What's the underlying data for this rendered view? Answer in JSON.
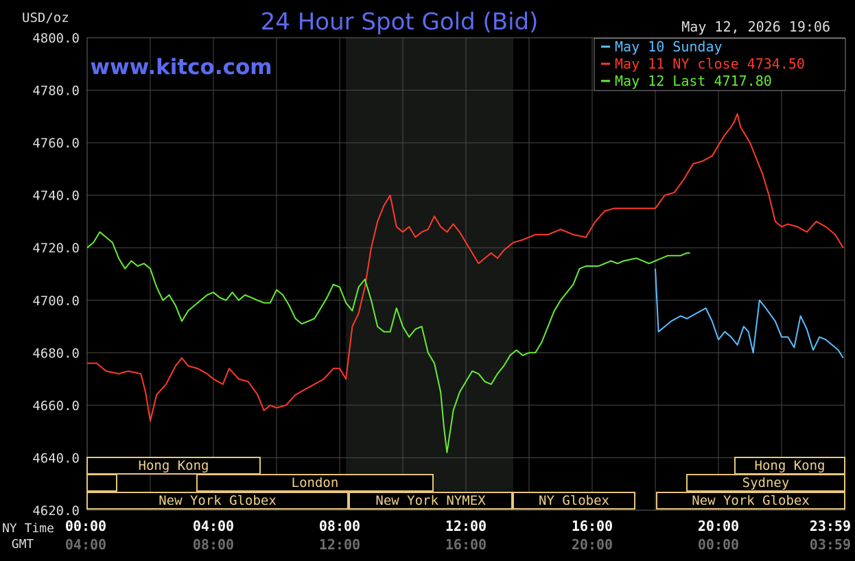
{
  "chart_data": {
    "type": "line",
    "title": "24 Hour Spot Gold (Bid)",
    "ylabel": "USD/oz",
    "watermark": "www.kitco.com",
    "timestamp": "May 12, 2026 19:06",
    "ylim": [
      4620,
      4800
    ],
    "yticks": [
      "4800.0",
      "4780.0",
      "4760.0",
      "4740.0",
      "4720.0",
      "4700.0",
      "4680.0",
      "4660.0",
      "4640.0",
      "4620.0"
    ],
    "x_axis": {
      "row_labels": [
        "NY Time",
        "GMT"
      ],
      "ny_time_ticks": [
        "00:00",
        "04:00",
        "08:00",
        "12:00",
        "16:00",
        "20:00",
        "23:59"
      ],
      "gmt_ticks": [
        "04:00",
        "08:00",
        "12:00",
        "16:00",
        "20:00",
        "00:00",
        "03:59"
      ],
      "xlim_hours": [
        0,
        24
      ]
    },
    "nymex_session_hours": [
      8.2,
      13.5
    ],
    "legend_position": "top-right",
    "series": [
      {
        "name": "May 10 Sunday",
        "color": "#5bbfff",
        "x": [
          18,
          18.05,
          18.1,
          18.3,
          18.5,
          18.8,
          19.0,
          19.3,
          19.6,
          19.8,
          20.0,
          20.2,
          20.4,
          20.6,
          20.8,
          20.95,
          21.1,
          21.3,
          21.5,
          21.8,
          22.0,
          22.2,
          22.4,
          22.6,
          22.8,
          23.0,
          23.2,
          23.4,
          23.6,
          23.8,
          23.95
        ],
        "values": [
          4712,
          4700,
          4688,
          4690,
          4692,
          4694,
          4693,
          4695,
          4697,
          4692,
          4685,
          4688,
          4686,
          4683,
          4690,
          4688,
          4680,
          4700,
          4697,
          4692,
          4686,
          4686,
          4682,
          4694,
          4689,
          4681,
          4686,
          4685,
          4683,
          4681,
          4678
        ]
      },
      {
        "name": "May 11 NY close 4734.50",
        "color": "#ff3a2a",
        "x": [
          0,
          0.3,
          0.6,
          1.0,
          1.3,
          1.7,
          1.85,
          2.0,
          2.2,
          2.5,
          2.8,
          3.0,
          3.2,
          3.5,
          3.8,
          4.0,
          4.3,
          4.5,
          4.8,
          5.1,
          5.4,
          5.6,
          5.8,
          6.0,
          6.3,
          6.6,
          6.9,
          7.2,
          7.5,
          7.8,
          8.0,
          8.2,
          8.4,
          8.6,
          8.8,
          9.0,
          9.2,
          9.4,
          9.6,
          9.8,
          10.0,
          10.2,
          10.4,
          10.6,
          10.8,
          11.0,
          11.2,
          11.4,
          11.6,
          11.8,
          12.0,
          12.2,
          12.4,
          12.6,
          12.8,
          13.0,
          13.2,
          13.5,
          13.8,
          14.2,
          14.6,
          15.0,
          15.4,
          15.8,
          16.1,
          16.4,
          16.7,
          17.0,
          17.5,
          18.0,
          18.3,
          18.6,
          18.9,
          19.2,
          19.5,
          19.8,
          20.0,
          20.2,
          20.4,
          20.5,
          20.6,
          20.7,
          20.8,
          21.0,
          21.2,
          21.4,
          21.6,
          21.8,
          22.0,
          22.2,
          22.5,
          22.8,
          23.1,
          23.4,
          23.7,
          23.95
        ],
        "values": [
          4676,
          4676,
          4673,
          4672,
          4673,
          4672,
          4665,
          4654,
          4664,
          4668,
          4675,
          4678,
          4675,
          4674,
          4672,
          4670,
          4668,
          4674,
          4670,
          4669,
          4664,
          4658,
          4660,
          4659,
          4660,
          4664,
          4666,
          4668,
          4670,
          4674,
          4674,
          4670,
          4690,
          4695,
          4705,
          4720,
          4730,
          4736,
          4740,
          4728,
          4726,
          4728,
          4724,
          4726,
          4727,
          4732,
          4728,
          4726,
          4729,
          4726,
          4722,
          4718,
          4714,
          4716,
          4718,
          4716,
          4719,
          4722,
          4723,
          4725,
          4725,
          4727,
          4725,
          4724,
          4730,
          4734,
          4735,
          4735,
          4735,
          4735,
          4740,
          4741,
          4746,
          4752,
          4753,
          4755,
          4759,
          4763,
          4766,
          4768,
          4771,
          4766,
          4764,
          4760,
          4754,
          4748,
          4740,
          4730,
          4728,
          4729,
          4728,
          4726,
          4730,
          4728,
          4725,
          4720
        ]
      },
      {
        "name": "May 12 Last 4717.80",
        "color": "#66ee33",
        "x": [
          0,
          0.2,
          0.4,
          0.6,
          0.8,
          1.0,
          1.2,
          1.4,
          1.6,
          1.8,
          2.0,
          2.2,
          2.4,
          2.6,
          2.8,
          3.0,
          3.2,
          3.4,
          3.6,
          3.8,
          4.0,
          4.2,
          4.4,
          4.6,
          4.8,
          5.0,
          5.2,
          5.4,
          5.6,
          5.8,
          6.0,
          6.2,
          6.4,
          6.6,
          6.8,
          7.0,
          7.2,
          7.4,
          7.6,
          7.8,
          8.0,
          8.2,
          8.4,
          8.6,
          8.8,
          9.0,
          9.2,
          9.4,
          9.6,
          9.8,
          10.0,
          10.2,
          10.4,
          10.6,
          10.8,
          11.0,
          11.2,
          11.3,
          11.4,
          11.6,
          11.8,
          12.0,
          12.2,
          12.4,
          12.6,
          12.8,
          13.0,
          13.2,
          13.4,
          13.6,
          13.8,
          14.0,
          14.2,
          14.4,
          14.6,
          14.8,
          15.0,
          15.2,
          15.4,
          15.6,
          15.8,
          16.0,
          16.2,
          16.4,
          16.6,
          16.8,
          17.0,
          17.4,
          17.8,
          18.0,
          18.2,
          18.4,
          18.6,
          18.8,
          19.0,
          19.1
        ],
        "values": [
          4720,
          4722,
          4726,
          4724,
          4722,
          4716,
          4712,
          4715,
          4713,
          4714,
          4712,
          4705,
          4700,
          4702,
          4698,
          4692,
          4696,
          4698,
          4700,
          4702,
          4703,
          4701,
          4700,
          4703,
          4700,
          4702,
          4701,
          4700,
          4699,
          4699,
          4704,
          4702,
          4698,
          4693,
          4691,
          4692,
          4693,
          4697,
          4701,
          4706,
          4705,
          4699,
          4696,
          4705,
          4708,
          4700,
          4690,
          4688,
          4688,
          4697,
          4690,
          4686,
          4689,
          4690,
          4680,
          4676,
          4665,
          4652,
          4642,
          4658,
          4665,
          4669,
          4673,
          4672,
          4669,
          4668,
          4672,
          4675,
          4679,
          4681,
          4679,
          4680,
          4680,
          4684,
          4690,
          4696,
          4700,
          4703,
          4706,
          4712,
          4713,
          4713,
          4713,
          4714,
          4715,
          4714,
          4715,
          4716,
          4714,
          4715,
          4716,
          4717,
          4717,
          4717,
          4718,
          4718
        ]
      }
    ],
    "session_bars": [
      {
        "label": "Hong Kong",
        "row": 0
      },
      {
        "label": "Hong Kong",
        "row": 0
      },
      {
        "label": "",
        "row": 1
      },
      {
        "label": "London",
        "row": 1
      },
      {
        "label": "Sydney",
        "row": 1
      },
      {
        "label": "New York Globex",
        "row": 2
      },
      {
        "label": "New York NYMEX",
        "row": 2
      },
      {
        "label": "NY Globex",
        "row": 2
      },
      {
        "label": "New York Globex",
        "row": 2
      }
    ]
  }
}
